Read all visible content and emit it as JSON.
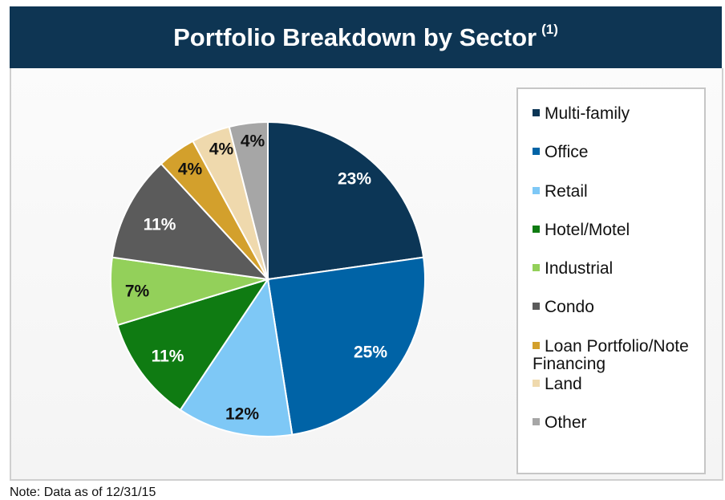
{
  "header": {
    "title": "Portfolio Breakdown by Sector",
    "footnote_marker": "(1)"
  },
  "note": "Note: Data as of 12/31/15",
  "chart_data": {
    "type": "pie",
    "title": "Portfolio Breakdown by Sector",
    "legend_position": "right",
    "slices": [
      {
        "label": "Multi-family",
        "value": 23,
        "display": "23%",
        "color": "#0c3656",
        "text_color": "#ffffff"
      },
      {
        "label": "Office",
        "value": 25,
        "display": "25%",
        "color": "#0063a6",
        "text_color": "#ffffff"
      },
      {
        "label": "Retail",
        "value": 12,
        "display": "12%",
        "color": "#7ec8f6",
        "text_color": "#111111"
      },
      {
        "label": "Hotel/Motel",
        "value": 11,
        "display": "11%",
        "color": "#0f7b12",
        "text_color": "#ffffff"
      },
      {
        "label": "Industrial",
        "value": 7,
        "display": "7%",
        "color": "#93d05a",
        "text_color": "#111111"
      },
      {
        "label": "Condo",
        "value": 11,
        "display": "11%",
        "color": "#5b5b5b",
        "text_color": "#ffffff"
      },
      {
        "label": "Loan Portfolio/Note Financing",
        "value": 4,
        "display": "4%",
        "color": "#d3a02c",
        "text_color": "#111111"
      },
      {
        "label": "Land",
        "value": 4,
        "display": "4%",
        "color": "#efd9ad",
        "text_color": "#111111"
      },
      {
        "label": "Other",
        "value": 4,
        "display": "4%",
        "color": "#a6a6a6",
        "text_color": "#111111"
      }
    ]
  }
}
